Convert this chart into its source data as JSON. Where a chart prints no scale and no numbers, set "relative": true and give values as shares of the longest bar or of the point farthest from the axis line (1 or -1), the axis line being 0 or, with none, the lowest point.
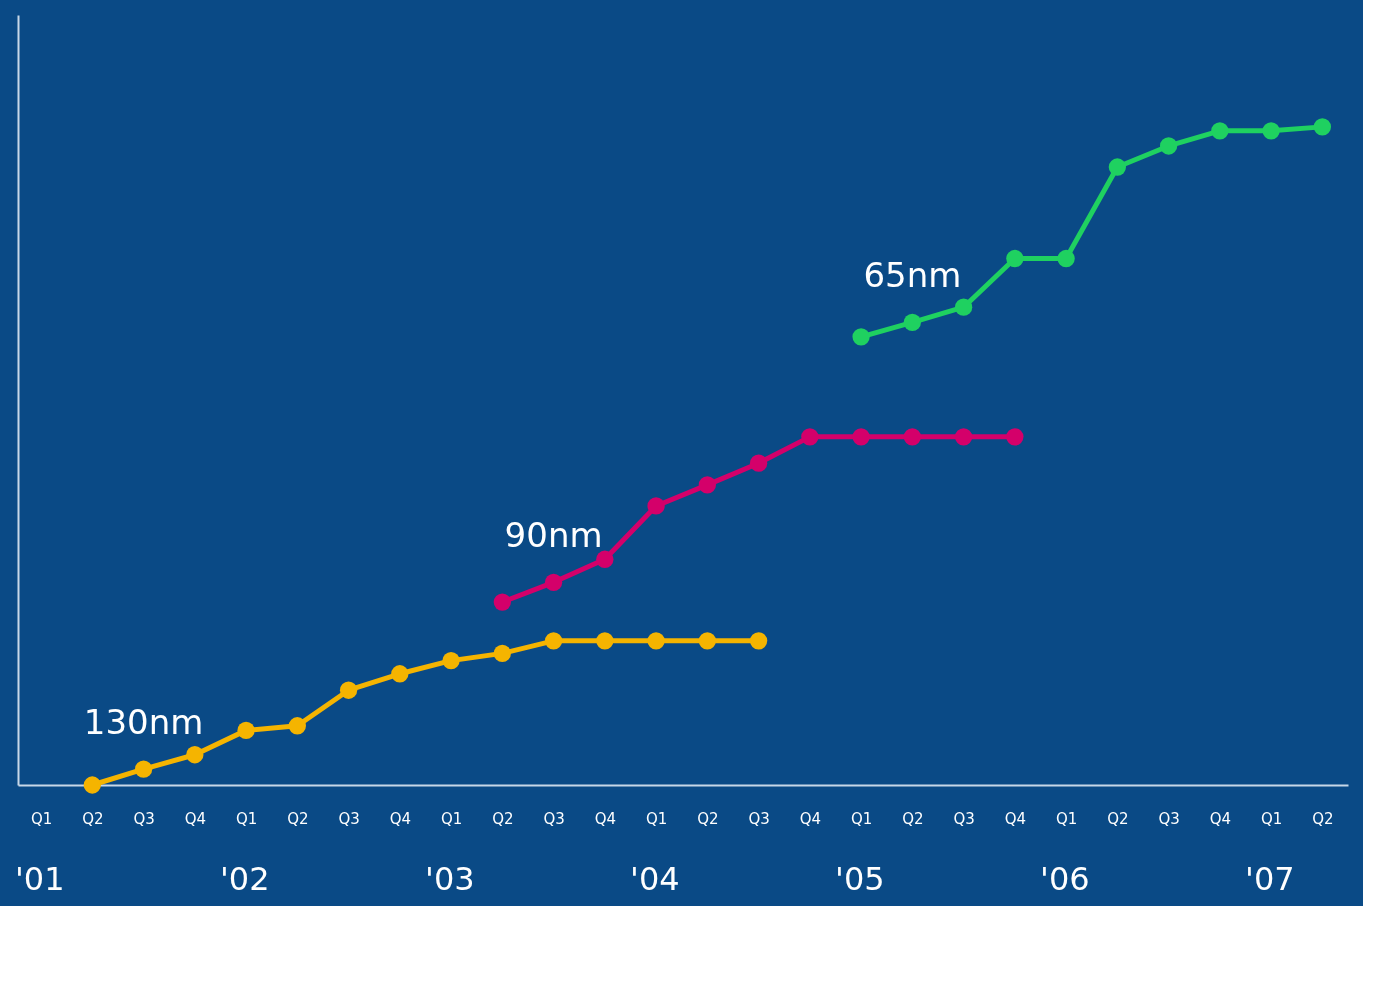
{
  "chart_data": {
    "type": "line",
    "relative": true,
    "marker": "circle",
    "line_style": "solid",
    "grid": false,
    "categories": [
      "Q1",
      "Q2",
      "Q3",
      "Q4",
      "Q1",
      "Q2",
      "Q3",
      "Q4",
      "Q1",
      "Q2",
      "Q3",
      "Q4",
      "Q1",
      "Q2",
      "Q3",
      "Q4",
      "Q1",
      "Q2",
      "Q3",
      "Q4",
      "Q1",
      "Q2",
      "Q3",
      "Q4",
      "Q1",
      "Q2"
    ],
    "series": [
      {
        "name": "130nm",
        "color": "#f5b400",
        "values": [
          null,
          0,
          0.024,
          0.046,
          0.083,
          0.09,
          0.144,
          0.169,
          0.189,
          0.2,
          0.219,
          0.219,
          0.219,
          0.219,
          0.219,
          null,
          null,
          null,
          null,
          null,
          null,
          null,
          null,
          null,
          null,
          null
        ]
      },
      {
        "name": "90nm",
        "color": "#d4006a",
        "values": [
          null,
          null,
          null,
          null,
          null,
          null,
          null,
          null,
          null,
          0.278,
          0.308,
          0.343,
          0.424,
          0.456,
          0.489,
          0.529,
          0.529,
          0.529,
          0.529,
          0.529,
          null,
          null,
          null,
          null,
          null,
          null
        ]
      },
      {
        "name": "65nm",
        "color": "#1fd160",
        "values": [
          null,
          null,
          null,
          null,
          null,
          null,
          null,
          null,
          null,
          null,
          null,
          null,
          null,
          null,
          null,
          null,
          0.681,
          0.703,
          0.726,
          0.8,
          0.8,
          0.939,
          0.971,
          0.994,
          0.994,
          1
        ]
      }
    ],
    "annotations": [
      "'01",
      "'02",
      "'03",
      "'04",
      "'05",
      "'06",
      "'07"
    ]
  }
}
